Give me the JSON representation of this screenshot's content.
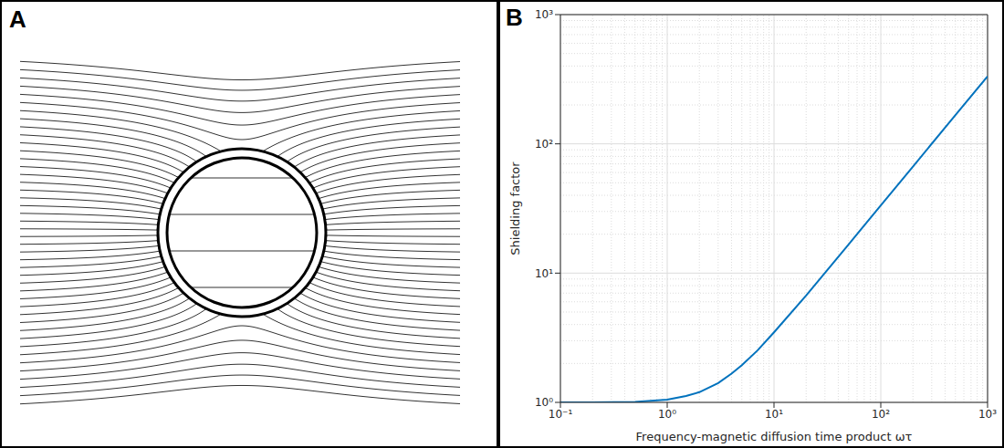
{
  "diagram": {
    "panel_label": "A"
  },
  "chart_data": {
    "panel_label": "B",
    "type": "line",
    "x_label": "Frequency-magnetic diffusion time product ωτ",
    "y_label": "Shielding factor",
    "x": [
      0.1,
      0.2,
      0.5,
      1,
      1.5,
      2,
      3,
      4,
      5,
      7,
      10,
      20,
      50,
      100,
      200,
      500,
      1000
    ],
    "values": [
      1.0,
      1.0,
      1.01,
      1.05,
      1.12,
      1.2,
      1.41,
      1.67,
      1.94,
      2.52,
      3.48,
      6.7,
      16.7,
      33.4,
      66.7,
      167,
      333
    ],
    "color": "#0072bd",
    "log": true,
    "grid": true,
    "xlim": [
      0.1,
      1000
    ],
    "ylim": [
      1,
      1000
    ],
    "xticks": [
      {
        "value": 0.1,
        "label": "10⁻¹"
      },
      {
        "value": 1,
        "label": "10⁰"
      },
      {
        "value": 10,
        "label": "10¹"
      },
      {
        "value": 100,
        "label": "10²"
      },
      {
        "value": 1000,
        "label": "10³"
      }
    ],
    "yticks": [
      {
        "value": 1,
        "label": "10⁰"
      },
      {
        "value": 10,
        "label": "10¹"
      },
      {
        "value": 100,
        "label": "10²"
      },
      {
        "value": 1000,
        "label": "10³"
      }
    ]
  }
}
